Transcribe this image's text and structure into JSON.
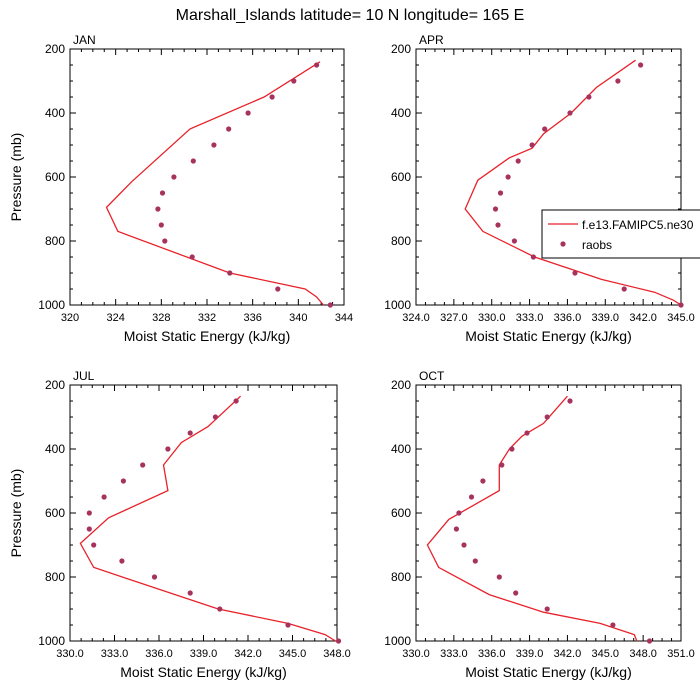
{
  "colors": {
    "model": "#e8222a",
    "obs": "#a8325e",
    "axis": "#000000"
  },
  "figure_title": "Marshall_Islands  latitude= 10 N longitude= 165 E",
  "legend": {
    "model_label": "f.e13.FAMIPC5.ne30",
    "obs_label": "raobs"
  },
  "chart_data": [
    {
      "type": "line",
      "title": "JAN",
      "xlabel": "Moist Static Energy (kJ/kg)",
      "ylabel": "Pressure (mb)",
      "xlim": [
        320,
        344
      ],
      "ylim": [
        200,
        1000
      ],
      "xticks": [
        320,
        324,
        328,
        332,
        336,
        340,
        344
      ],
      "xtick_labels": [
        "320",
        "324",
        "328",
        "332",
        "336",
        "340",
        "344"
      ],
      "yticks": [
        200,
        400,
        600,
        800,
        1000
      ],
      "ytick_labels": [
        "200",
        "400",
        "600",
        "800",
        "1000"
      ],
      "series": [
        {
          "name": "f.e13.FAMIPC5.ne30",
          "kind": "line",
          "points": [
            [
              341.9,
              240
            ],
            [
              337,
              350
            ],
            [
              330.5,
              450
            ],
            [
              325.4,
              615
            ],
            [
              323.2,
              695
            ],
            [
              324.2,
              770
            ],
            [
              334,
              900
            ],
            [
              340.6,
              950
            ],
            [
              341.6,
              975
            ],
            [
              342.2,
              1000
            ]
          ]
        },
        {
          "name": "raobs",
          "kind": "markers",
          "points": [
            [
              341.6,
              250
            ],
            [
              339.6,
              300
            ],
            [
              337.7,
              350
            ],
            [
              335.6,
              400
            ],
            [
              333.9,
              450
            ],
            [
              332.6,
              500
            ],
            [
              330.8,
              550
            ],
            [
              329.1,
              600
            ],
            [
              328.1,
              650
            ],
            [
              327.7,
              700
            ],
            [
              328,
              750
            ],
            [
              328.3,
              800
            ],
            [
              330.7,
              850
            ],
            [
              334,
              900
            ],
            [
              338.2,
              950
            ],
            [
              342.8,
              1000
            ]
          ]
        }
      ]
    },
    {
      "type": "line",
      "title": "APR",
      "xlabel": "Moist Static Energy (kJ/kg)",
      "ylabel": "",
      "xlim": [
        324,
        345
      ],
      "ylim": [
        200,
        1000
      ],
      "xticks": [
        324,
        327,
        330,
        333,
        336,
        339,
        342,
        345
      ],
      "xtick_labels": [
        "324.0",
        "327.0",
        "330.0",
        "333.0",
        "336.0",
        "339.0",
        "342.0",
        "345.0"
      ],
      "yticks": [
        200,
        400,
        600,
        800,
        1000
      ],
      "ytick_labels": [
        "200",
        "400",
        "600",
        "800",
        "1000"
      ],
      "series": [
        {
          "name": "f.e13.FAMIPC5.ne30",
          "kind": "line",
          "points": [
            [
              341.4,
              235
            ],
            [
              338.3,
              320
            ],
            [
              336.3,
              400
            ],
            [
              334.1,
              465
            ],
            [
              333.2,
              510
            ],
            [
              331.4,
              540
            ],
            [
              328.9,
              610
            ],
            [
              327.9,
              700
            ],
            [
              329.3,
              770
            ],
            [
              333.4,
              850
            ],
            [
              338.7,
              920
            ],
            [
              342.9,
              960
            ],
            [
              344.4,
              985
            ],
            [
              345,
              1000
            ]
          ]
        },
        {
          "name": "raobs",
          "kind": "markers",
          "points": [
            [
              341.8,
              250
            ],
            [
              340,
              300
            ],
            [
              337.7,
              350
            ],
            [
              336.2,
              400
            ],
            [
              334.2,
              450
            ],
            [
              333.2,
              500
            ],
            [
              332.1,
              550
            ],
            [
              331.3,
              600
            ],
            [
              330.7,
              650
            ],
            [
              330.3,
              700
            ],
            [
              330.5,
              750
            ],
            [
              331.8,
              800
            ],
            [
              333.3,
              850
            ],
            [
              336.6,
              900
            ],
            [
              340.5,
              950
            ],
            [
              345,
              1000
            ]
          ]
        }
      ]
    },
    {
      "type": "line",
      "title": "JUL",
      "xlabel": "Moist Static Energy (kJ/kg)",
      "ylabel": "Pressure (mb)",
      "xlim": [
        330,
        348
      ],
      "ylim": [
        200,
        1000
      ],
      "xticks": [
        330,
        333,
        336,
        339,
        342,
        345,
        348
      ],
      "xtick_labels": [
        "330.0",
        "333.0",
        "336.0",
        "339.0",
        "342.0",
        "345.0",
        "348.0"
      ],
      "yticks": [
        200,
        400,
        600,
        800,
        1000
      ],
      "ytick_labels": [
        "200",
        "400",
        "600",
        "800",
        "1000"
      ],
      "series": [
        {
          "name": "f.e13.FAMIPC5.ne30",
          "kind": "line",
          "points": [
            [
              341.5,
              235
            ],
            [
              339.3,
              330
            ],
            [
              337.5,
              380
            ],
            [
              336.3,
              450
            ],
            [
              336.6,
              530
            ],
            [
              332.6,
              615
            ],
            [
              330.7,
              695
            ],
            [
              331.6,
              770
            ],
            [
              336.1,
              840
            ],
            [
              340,
              900
            ],
            [
              344.7,
              945
            ],
            [
              347.2,
              980
            ],
            [
              347.9,
              1000
            ]
          ]
        },
        {
          "name": "raobs",
          "kind": "markers",
          "points": [
            [
              341.2,
              250
            ],
            [
              339.8,
              300
            ],
            [
              338.1,
              350
            ],
            [
              336.6,
              400
            ],
            [
              334.9,
              450
            ],
            [
              333.6,
              500
            ],
            [
              332.3,
              550
            ],
            [
              331.3,
              600
            ],
            [
              331.3,
              650
            ],
            [
              331.6,
              700
            ],
            [
              333.5,
              750
            ],
            [
              335.7,
              800
            ],
            [
              338.1,
              850
            ],
            [
              340.1,
              900
            ],
            [
              344.7,
              950
            ],
            [
              348.1,
              1000
            ]
          ]
        }
      ]
    },
    {
      "type": "line",
      "title": "OCT",
      "xlabel": "Moist Static Energy (kJ/kg)",
      "ylabel": "",
      "xlim": [
        330,
        351
      ],
      "ylim": [
        200,
        1000
      ],
      "xticks": [
        330,
        333,
        336,
        339,
        342,
        345,
        348,
        351
      ],
      "xtick_labels": [
        "330.0",
        "333.0",
        "336.0",
        "339.0",
        "342.0",
        "345.0",
        "348.0",
        "351.0"
      ],
      "yticks": [
        200,
        400,
        600,
        800,
        1000
      ],
      "ytick_labels": [
        "200",
        "400",
        "600",
        "800",
        "1000"
      ],
      "series": [
        {
          "name": "f.e13.FAMIPC5.ne30",
          "kind": "line",
          "points": [
            [
              342,
              235
            ],
            [
              340.1,
              320
            ],
            [
              338.4,
              360
            ],
            [
              337.4,
              400
            ],
            [
              336.6,
              450
            ],
            [
              336.6,
              530
            ],
            [
              332.6,
              620
            ],
            [
              330.9,
              700
            ],
            [
              331.8,
              770
            ],
            [
              335.8,
              855
            ],
            [
              340.1,
              910
            ],
            [
              344.6,
              945
            ],
            [
              347.3,
              980
            ],
            [
              347.5,
              1000
            ]
          ]
        },
        {
          "name": "raobs",
          "kind": "markers",
          "points": [
            [
              342.2,
              250
            ],
            [
              340.4,
              300
            ],
            [
              338.8,
              350
            ],
            [
              337.6,
              400
            ],
            [
              336.8,
              450
            ],
            [
              335.3,
              500
            ],
            [
              334.4,
              550
            ],
            [
              333.4,
              600
            ],
            [
              333.2,
              650
            ],
            [
              333.8,
              700
            ],
            [
              334.7,
              750
            ],
            [
              336.6,
              800
            ],
            [
              337.9,
              850
            ],
            [
              340.4,
              900
            ],
            [
              345.6,
              950
            ],
            [
              348.5,
              1000
            ]
          ]
        }
      ]
    }
  ]
}
